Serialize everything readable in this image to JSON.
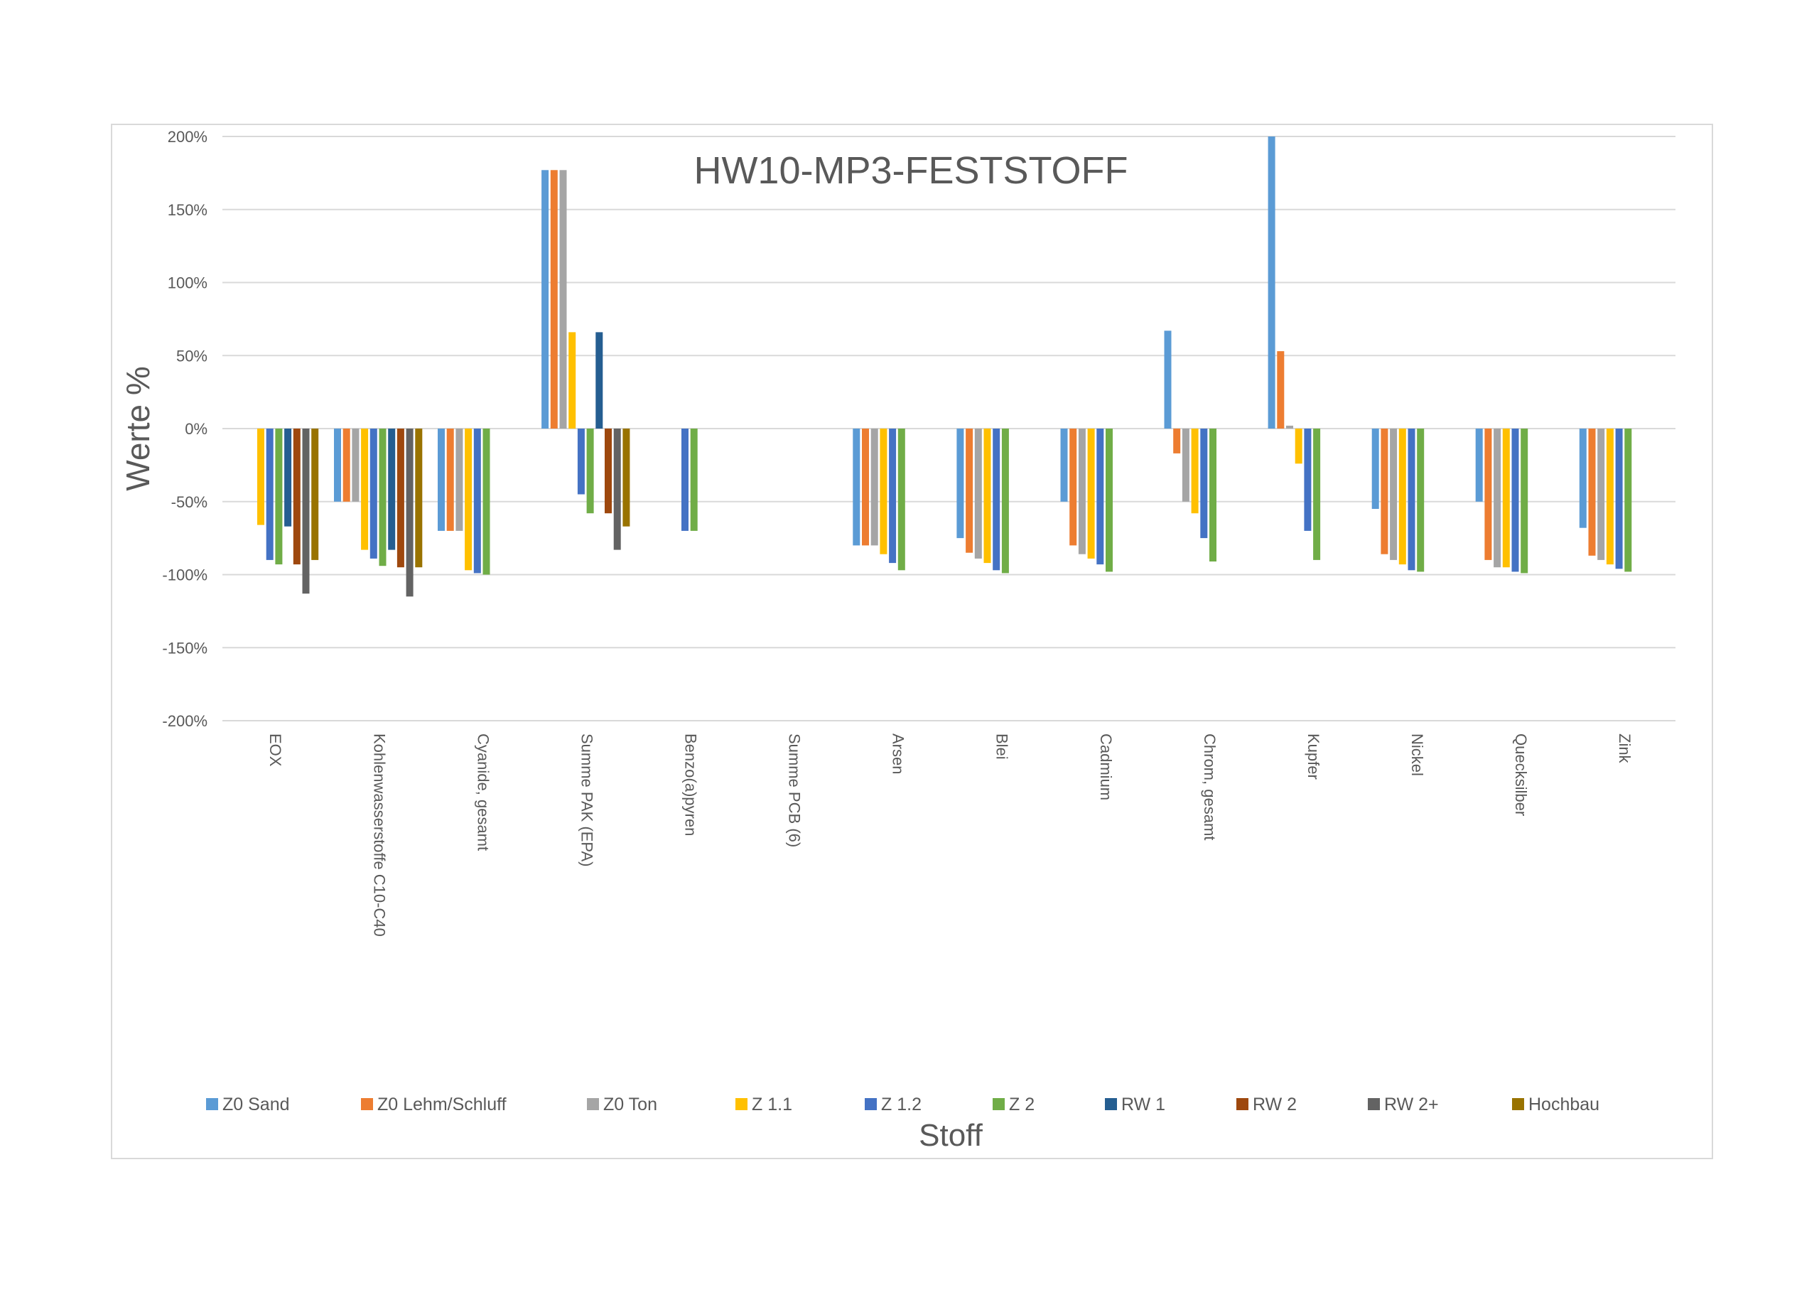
{
  "chart_data": {
    "type": "bar",
    "title": "HW10-MP3-FESTSTOFF",
    "xlabel": "Stoff",
    "ylabel": "Werte %",
    "ylim": [
      -200,
      200
    ],
    "yticks": [
      200,
      150,
      100,
      50,
      0,
      -50,
      -100,
      -150,
      -200
    ],
    "ytick_labels": [
      "200%",
      "150%",
      "100%",
      "50%",
      "0%",
      "-50%",
      "-100%",
      "-150%",
      "-200%"
    ],
    "grid": true,
    "legend_position": "bottom",
    "categories": [
      "EOX",
      "Kohlenwasserstoffe C10-C40",
      "Cyanide, gesamt",
      "Summe PAK (EPA)",
      "Benzo(a)pyren",
      "Summe PCB (6)",
      "Arsen",
      "Blei",
      "Cadmium",
      "Chrom, gesamt",
      "Kupfer",
      "Nickel",
      "Quecksilber",
      "Zink"
    ],
    "series": [
      {
        "name": "Z0 Sand",
        "color": "#5B9BD5",
        "values": [
          null,
          -50,
          -70,
          177,
          null,
          null,
          -80,
          -75,
          -50,
          67,
          200,
          -55,
          -50,
          -68
        ]
      },
      {
        "name": "Z0 Lehm/Schluff",
        "color": "#ED7D31",
        "values": [
          null,
          -50,
          -70,
          177,
          null,
          null,
          -80,
          -85,
          -80,
          -17,
          53,
          -86,
          -90,
          -87
        ]
      },
      {
        "name": "Z0 Ton",
        "color": "#A5A5A5",
        "values": [
          null,
          -50,
          -70,
          177,
          null,
          null,
          -80,
          -89,
          -86,
          -50,
          2,
          -90,
          -95,
          -90
        ]
      },
      {
        "name": "Z 1.1",
        "color": "#FFC000",
        "values": [
          -66,
          -83,
          -97,
          66,
          null,
          null,
          -86,
          -92,
          -89,
          -58,
          -24,
          -93,
          -95,
          -93
        ]
      },
      {
        "name": "Z 1.2",
        "color": "#4472C4",
        "values": [
          -90,
          -89,
          -99,
          -45,
          -70,
          null,
          -92,
          -97,
          -93,
          -75,
          -70,
          -97,
          -98,
          -96
        ]
      },
      {
        "name": "Z 2",
        "color": "#70AD47",
        "values": [
          -93,
          -94,
          -100,
          -58,
          -70,
          null,
          -97,
          -99,
          -98,
          -91,
          -90,
          -98,
          -99,
          -98
        ]
      },
      {
        "name": "RW 1",
        "color": "#255E91",
        "values": [
          -67,
          -83,
          null,
          66,
          null,
          null,
          null,
          null,
          null,
          null,
          null,
          null,
          null,
          null
        ]
      },
      {
        "name": "RW 2",
        "color": "#9E480E",
        "values": [
          -93,
          -95,
          null,
          -58,
          null,
          null,
          null,
          null,
          null,
          null,
          null,
          null,
          null,
          null
        ]
      },
      {
        "name": "RW 2+",
        "color": "#636363",
        "values": [
          -113,
          -115,
          null,
          -83,
          null,
          null,
          null,
          null,
          null,
          null,
          null,
          null,
          null,
          null
        ]
      },
      {
        "name": "Hochbau",
        "color": "#997300",
        "values": [
          -90,
          -95,
          null,
          -67,
          null,
          null,
          null,
          null,
          null,
          null,
          null,
          null,
          null,
          null
        ]
      }
    ]
  }
}
